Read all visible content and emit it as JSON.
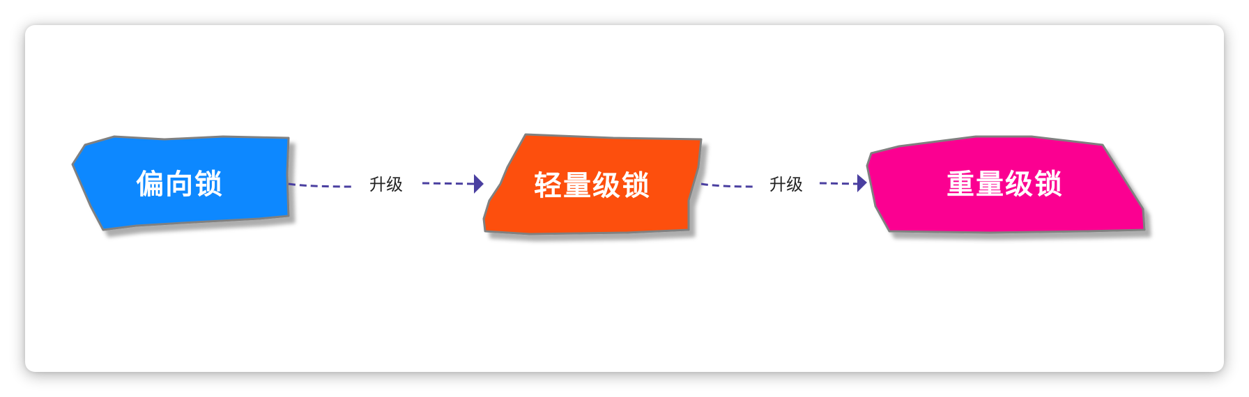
{
  "diagram": {
    "nodes": [
      {
        "id": "biased",
        "label": "偏向锁",
        "color": "#1188ff"
      },
      {
        "id": "lightweight",
        "label": "轻量级锁",
        "color": "#fd4f0a"
      },
      {
        "id": "heavyweight",
        "label": "重量级锁",
        "color": "#fb0091"
      }
    ],
    "edges": [
      {
        "from": "biased",
        "to": "lightweight",
        "label": "升级"
      },
      {
        "from": "lightweight",
        "to": "heavyweight",
        "label": "升级"
      }
    ],
    "colors": {
      "node_border": "#808080",
      "edge": "#4a3fa0",
      "node_text": "#ffffff"
    }
  }
}
